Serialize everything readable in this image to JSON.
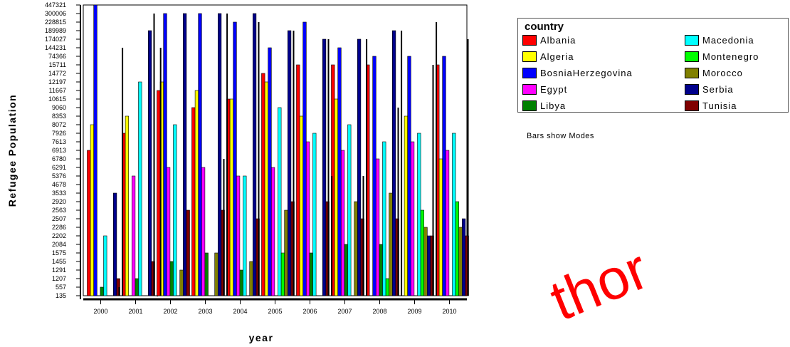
{
  "chart_data": {
    "type": "bar",
    "title": "",
    "xlabel": "year",
    "ylabel": "Refugee Population",
    "y_tick_labels": [
      "135",
      "557",
      "1207",
      "1291",
      "1455",
      "1575",
      "2084",
      "2202",
      "2286",
      "2507",
      "2563",
      "2920",
      "3533",
      "4678",
      "5376",
      "6291",
      "6780",
      "6913",
      "7613",
      "7926",
      "8072",
      "8353",
      "9060",
      "10615",
      "11667",
      "12197",
      "14772",
      "15711",
      "74366",
      "144231",
      "174027",
      "189989",
      "228815",
      "300006",
      "447321"
    ],
    "y_scale": "ordinal (tick labels are the sorted distinct bar values, evenly spaced)",
    "categories": [
      "2000",
      "2001",
      "2002",
      "2003",
      "2004",
      "2005",
      "2006",
      "2007",
      "2008",
      "2009",
      "2010"
    ],
    "legend_title": "country",
    "legend_placement": "right",
    "note": "Bars show Modes",
    "series": [
      {
        "name": "Albania",
        "color": "#ff0000",
        "values": [
          6913,
          7926,
          11667,
          9060,
          10615,
          14772,
          15711,
          15711,
          15711,
          null,
          15711
        ]
      },
      {
        "name": "Algeria",
        "color": "#ffff00",
        "values": [
          8072,
          8353,
          12197,
          11667,
          10615,
          12197,
          8353,
          10615,
          null,
          8353,
          6780
        ]
      },
      {
        "name": "BosniaHerzegovina",
        "color": "#0000ff",
        "values": [
          447321,
          null,
          300006,
          300006,
          228815,
          144231,
          228815,
          144231,
          74366,
          74366,
          74366
        ]
      },
      {
        "name": "Egypt",
        "color": "#ff00ff",
        "values": [
          null,
          5376,
          6291,
          6291,
          5376,
          6291,
          7613,
          6913,
          6780,
          7613,
          6913
        ]
      },
      {
        "name": "Libya",
        "color": "#008000",
        "values": [
          557,
          1207,
          1455,
          1575,
          1291,
          null,
          1575,
          2084,
          2084,
          null,
          null
        ]
      },
      {
        "name": "Macedonia",
        "color": "#00ffff",
        "values": [
          2202,
          12197,
          8072,
          null,
          5376,
          9060,
          7926,
          8072,
          7613,
          7926,
          7926
        ]
      },
      {
        "name": "Montenegro",
        "color": "#00ff00",
        "values": [
          null,
          null,
          null,
          null,
          null,
          1575,
          null,
          null,
          1207,
          2563,
          2920
        ]
      },
      {
        "name": "Morocco",
        "color": "#808000",
        "values": [
          null,
          null,
          1291,
          1575,
          1455,
          2563,
          null,
          2920,
          3533,
          2286,
          2286
        ]
      },
      {
        "name": "Serbia",
        "color": "#00008b",
        "values": [
          3533,
          189989,
          300006,
          300006,
          300006,
          189989,
          174027,
          174027,
          189989,
          2202,
          2507
        ]
      },
      {
        "name": "Tunisia",
        "color": "#800000",
        "values": [
          1207,
          1455,
          2563,
          2563,
          2507,
          2920,
          2920,
          2507,
          2507,
          2202,
          2202
        ]
      }
    ],
    "extra_black_bars": [
      {
        "category": "2000",
        "value": 557
      },
      {
        "category": "2000",
        "value": 144231
      },
      {
        "category": "2001",
        "value": 300006
      },
      {
        "category": "2001",
        "value": 135
      },
      {
        "category": "2001",
        "value": 144231
      },
      {
        "category": "2003",
        "value": 6780
      },
      {
        "category": "2003",
        "value": 300006
      },
      {
        "category": "2004",
        "value": 228815
      },
      {
        "category": "2005",
        "value": 189989
      },
      {
        "category": "2006",
        "value": 174027
      },
      {
        "category": "2006",
        "value": 5376
      },
      {
        "category": "2007",
        "value": 5376
      },
      {
        "category": "2007",
        "value": 174027
      },
      {
        "category": "2008",
        "value": 9060
      },
      {
        "category": "2008",
        "value": 189989
      },
      {
        "category": "2009",
        "value": 15711
      },
      {
        "category": "2009",
        "value": 228815
      },
      {
        "category": "2010",
        "value": 174027
      }
    ]
  },
  "watermark": "thor"
}
